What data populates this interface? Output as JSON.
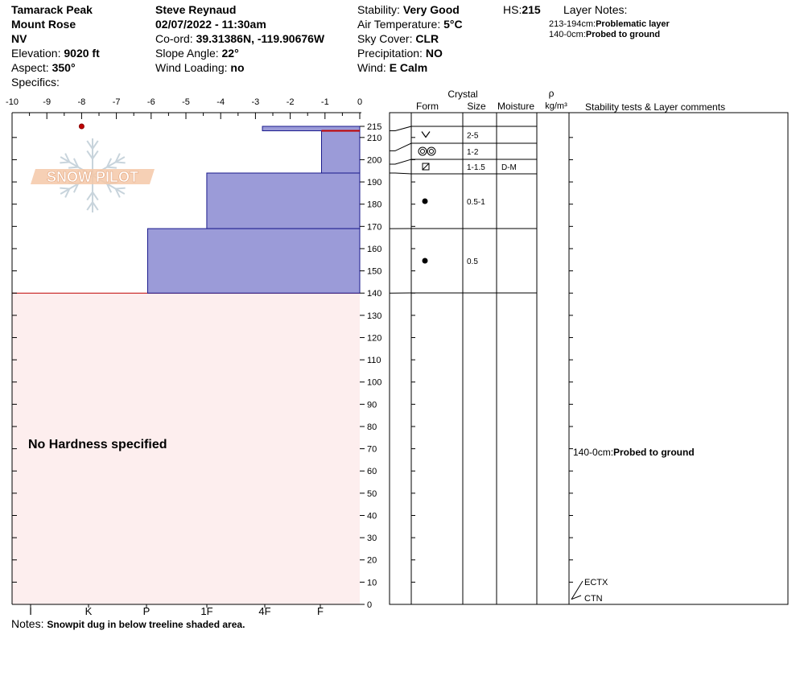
{
  "header": {
    "location": "Tamarack Peak",
    "area": "Mount Rose",
    "state": "NV",
    "elevation_label": "Elevation:",
    "elevation": "9020 ft",
    "aspect_label": "Aspect:",
    "aspect": "350°",
    "specifics_label": "Specifics:",
    "observer": "Steve Reynaud",
    "datetime": "02/07/2022 - 11:30am",
    "coord_label": "Co-ord:",
    "coord": "39.31386N, -119.90676W",
    "slope_label": "Slope Angle:",
    "slope": "22°",
    "wind_loading_label": "Wind Loading:",
    "wind_loading": "no",
    "stability_label": "Stability:",
    "stability": "Very Good",
    "air_temp_label": "Air Temperature:",
    "air_temp": "5°C",
    "sky_label": "Sky Cover:",
    "sky": "CLR",
    "precip_label": "Precipitation:",
    "precip": "NO",
    "wind_label": "Wind:",
    "wind": "E Calm",
    "hs_label": "HS:",
    "hs": "215",
    "layer_notes_title": "Layer Notes:",
    "layer_notes": [
      {
        "range": "213-194cm:",
        "text": "Problematic layer"
      },
      {
        "range": "140-0cm:",
        "text": "Probed to ground"
      }
    ]
  },
  "logo": {
    "text": "SNOW PILOT"
  },
  "colors": {
    "hardness_fill": "#9b9bd8",
    "hardness_stroke": "#1a1a8c",
    "no_hardness_bg": "#fdeeee",
    "red": "#c00000"
  },
  "chart_data": {
    "type": "profile",
    "temperature_axis": {
      "ticks": [
        "-10",
        "-9",
        "-8",
        "-7",
        "-6",
        "-5",
        "-4",
        "-3",
        "-2",
        "-1",
        "0"
      ],
      "range": [
        -10,
        0
      ]
    },
    "height_axis": {
      "ticks": [
        0,
        10,
        20,
        30,
        40,
        50,
        60,
        70,
        80,
        90,
        100,
        110,
        120,
        130,
        140,
        150,
        160,
        170,
        180,
        190,
        200,
        210,
        215
      ],
      "range": [
        0,
        215
      ]
    },
    "hardness_axis": {
      "ticks": [
        "I",
        "K",
        "P",
        "1F",
        "4F",
        "F"
      ]
    },
    "temperature_points": [
      {
        "temp": -8,
        "height": 215
      }
    ],
    "hardness_layers": [
      {
        "top": 215,
        "bottom": 213,
        "temp_extent": -2.8
      },
      {
        "top": 213,
        "bottom": 194,
        "temp_extent": -1.1
      },
      {
        "top": 194,
        "bottom": 169,
        "temp_extent": -4.4
      },
      {
        "top": 169,
        "bottom": 140,
        "temp_extent": -6.1
      }
    ],
    "problem_layer": {
      "top": 213,
      "bottom": 212
    },
    "no_hardness_label": "No Hardness specified",
    "no_hardness_range": [
      0,
      140
    ],
    "columns": {
      "crystal": "Crystal",
      "form": "Form",
      "size": "Size",
      "moisture": "Moisture",
      "rho": "ρ",
      "density_unit": "kg/m³",
      "comments": "Stability tests & Layer comments"
    },
    "table_rows": [
      {
        "top": 215,
        "bottom": 213,
        "form": "",
        "size": "",
        "moisture": ""
      },
      {
        "top": 213,
        "bottom": 204,
        "form": "facet-v",
        "size": "2-5",
        "moisture": ""
      },
      {
        "top": 204,
        "bottom": 198,
        "form": "melt-forms",
        "size": "1-2",
        "moisture": ""
      },
      {
        "top": 198,
        "bottom": 194,
        "form": "mixed-square",
        "size": "1-1.5",
        "moisture": "D-M"
      },
      {
        "top": 194,
        "bottom": 169,
        "form": "round-grains",
        "size": "0.5-1",
        "moisture": ""
      },
      {
        "top": 169,
        "bottom": 140,
        "form": "round-grains",
        "size": "0.5",
        "moisture": ""
      }
    ],
    "layer_comment": {
      "range": "140-0cm:",
      "text": "Probed to ground"
    },
    "stability_tests": [
      {
        "name": "ECTX",
        "height": 3
      },
      {
        "name": "CTN",
        "height": 3
      }
    ]
  },
  "notes": {
    "label": "Notes:",
    "text": "Snowpit dug in below treeline shaded area."
  }
}
